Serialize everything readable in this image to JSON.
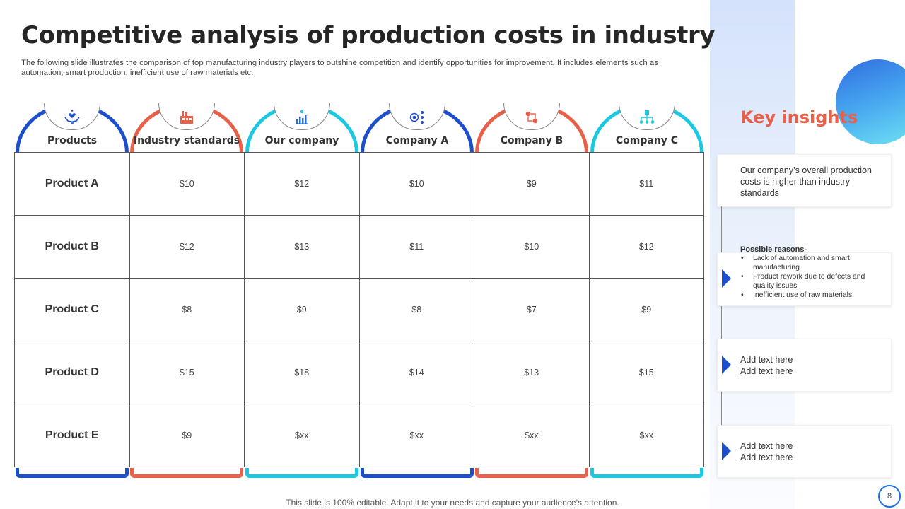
{
  "slide": {
    "title": "Competitive analysis of production costs in industry",
    "subtitle": "The following slide illustrates the comparison of top manufacturing industry players to outshine competition and identify opportunities for improvement. It includes elements such as automation, smart production, inefficient use of raw materials etc.",
    "footer": "This slide is 100% editable. Adapt it to your needs and capture your audience’s attention.",
    "page_number": "8"
  },
  "colors": {
    "blue": "#1d4fcc",
    "red": "#e8604a",
    "cyan": "#1cc8e0",
    "accent_heading": "#e8604a"
  },
  "table": {
    "columns": [
      {
        "label": "Products",
        "icon": "hands-heart-icon",
        "color": "blue"
      },
      {
        "label": "Industry standards",
        "icon": "factory-icon",
        "color": "red"
      },
      {
        "label": "Our company",
        "icon": "growth-chart-icon",
        "color": "cyan"
      },
      {
        "label": "Company A",
        "icon": "target-network-icon",
        "color": "blue"
      },
      {
        "label": "Company B",
        "icon": "process-flow-icon",
        "color": "red"
      },
      {
        "label": "Company C",
        "icon": "hierarchy-icon",
        "color": "cyan"
      }
    ],
    "rows": [
      {
        "product": "Product A",
        "values": [
          "$10",
          "$12",
          "$10",
          "$9",
          "$11"
        ]
      },
      {
        "product": "Product B",
        "values": [
          "$12",
          "$13",
          "$11",
          "$10",
          "$12"
        ]
      },
      {
        "product": "Product C",
        "values": [
          "$8",
          "$9",
          "$8",
          "$7",
          "$9"
        ]
      },
      {
        "product": "Product D",
        "values": [
          "$15",
          "$18",
          "$14",
          "$13",
          "$15"
        ]
      },
      {
        "product": "Product E",
        "values": [
          "$9",
          "$xx",
          "$xx",
          "$xx",
          "$xx"
        ]
      }
    ]
  },
  "insights": {
    "heading": "Key insights",
    "summary": "Our company’s overall  production costs is higher than industry standards",
    "reasons_heading": "Possible reasons-",
    "reasons": [
      "Lack of automation and smart manufacturing",
      "Product rework due to defects and quality issues",
      "Inefficient use of raw materials"
    ],
    "placeholders": [
      {
        "line1": "Add text here",
        "line2": "Add text here"
      },
      {
        "line1": "Add text here",
        "line2": "Add text here"
      }
    ]
  }
}
